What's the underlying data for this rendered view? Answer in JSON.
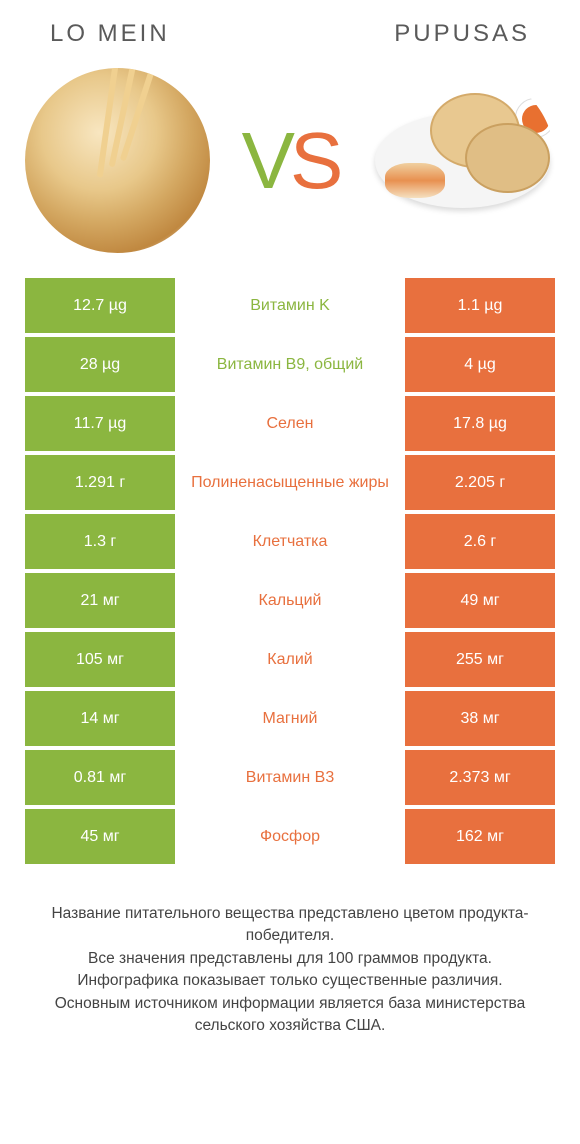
{
  "colors": {
    "green": "#8bb640",
    "orange": "#e8703e",
    "background": "#ffffff",
    "text": "#333333",
    "footer_text": "#444444"
  },
  "typography": {
    "header_fontsize": 24,
    "header_letterspacing": 3,
    "vs_fontsize": 80,
    "cell_fontsize": 16,
    "footer_fontsize": 15.5
  },
  "header": {
    "left": "Lo mein",
    "right": "Pupusas"
  },
  "vs": {
    "v": "V",
    "s": "S"
  },
  "table": {
    "rows": [
      {
        "left": "12.7 µg",
        "mid": "Витамин K",
        "right": "1.1 µg",
        "winner": "left"
      },
      {
        "left": "28 µg",
        "mid": "Витамин B9, общий",
        "right": "4 µg",
        "winner": "left"
      },
      {
        "left": "11.7 µg",
        "mid": "Селен",
        "right": "17.8 µg",
        "winner": "right"
      },
      {
        "left": "1.291 г",
        "mid": "Полиненасыщенные жиры",
        "right": "2.205 г",
        "winner": "right"
      },
      {
        "left": "1.3 г",
        "mid": "Клетчатка",
        "right": "2.6 г",
        "winner": "right"
      },
      {
        "left": "21 мг",
        "mid": "Кальций",
        "right": "49 мг",
        "winner": "right"
      },
      {
        "left": "105 мг",
        "mid": "Калий",
        "right": "255 мг",
        "winner": "right"
      },
      {
        "left": "14 мг",
        "mid": "Магний",
        "right": "38 мг",
        "winner": "right"
      },
      {
        "left": "0.81 мг",
        "mid": "Витамин B3",
        "right": "2.373 мг",
        "winner": "right"
      },
      {
        "left": "45 мг",
        "mid": "Фосфор",
        "right": "162 мг",
        "winner": "right"
      }
    ]
  },
  "footer": {
    "line1": "Название питательного вещества представлено цветом продукта-победителя.",
    "line2": "Все значения представлены для 100 граммов продукта.",
    "line3": "Инфографика показывает только существенные различия.",
    "line4": "Основным источником информации является база министерства сельского хозяйства США."
  }
}
